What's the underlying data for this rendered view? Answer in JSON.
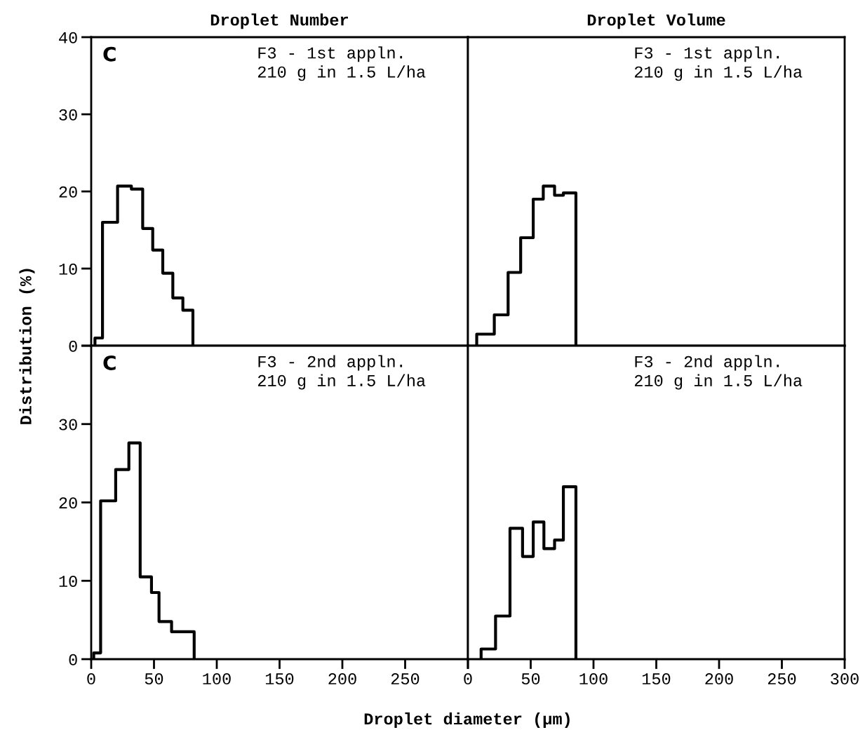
{
  "chart_data": [
    {
      "type": "histogram",
      "title": "Droplet Number",
      "annotations": [
        "C",
        "F3 - 1st appln.\n210 g in 1.5 L/ha"
      ],
      "bins": [
        3,
        9,
        21,
        32,
        41,
        49,
        57,
        65,
        73,
        81
      ],
      "values": [
        1,
        16,
        20.7,
        20.3,
        15.2,
        12.4,
        9.4,
        6.2,
        4.6
      ],
      "color": "#000000",
      "xlim": [
        0,
        300
      ],
      "ylim": [
        0,
        40
      ],
      "xticks": [
        0,
        50,
        100,
        150,
        200,
        250
      ],
      "yticks": [
        0,
        10,
        20,
        30,
        40
      ],
      "tick_labels": "y",
      "grid": false
    },
    {
      "type": "histogram",
      "title": "Droplet Volume",
      "annotations": [
        "F3 - 1st appln.\n210 g in 1.5 L/ha"
      ],
      "bins": [
        7,
        21,
        32,
        42,
        52,
        60,
        69,
        76,
        86
      ],
      "values": [
        1.5,
        4,
        9.5,
        14,
        19,
        20.7,
        19.5,
        19.8
      ],
      "color": "#000000",
      "xlim": [
        0,
        300
      ],
      "ylim": [
        0,
        40
      ],
      "xticks": [
        0,
        50,
        100,
        150,
        200,
        250,
        300
      ],
      "yticks": [
        0,
        10,
        20,
        30,
        40
      ],
      "tick_labels": false,
      "grid": false
    },
    {
      "type": "histogram",
      "ylabel": "Distribution (%)",
      "xlabel": "Droplet diameter (µm)",
      "annotations": [
        "C",
        "F3 - 2nd appln.\n210 g in 1.5 L/ha"
      ],
      "bins": [
        2,
        7.5,
        19.5,
        30,
        39,
        48,
        54,
        64,
        82
      ],
      "values": [
        0.8,
        20.2,
        24.2,
        27.6,
        10.5,
        8.5,
        4.8,
        3.5
      ],
      "color": "#000000",
      "xlim": [
        0,
        300
      ],
      "ylim": [
        0,
        40
      ],
      "xticks": [
        0,
        50,
        100,
        150,
        200,
        250,
        {
          "value": 300,
          "label": null
        }
      ],
      "yticks": [
        0,
        10,
        20,
        30,
        {
          "value": 40,
          "label": null
        }
      ],
      "grid": false
    },
    {
      "type": "histogram",
      "annotations": [
        "F3 - 2nd appln.\n210 g in 1.5 L/ha"
      ],
      "bins": [
        10.5,
        22,
        33.5,
        43.5,
        52,
        60.5,
        69,
        76,
        86
      ],
      "values": [
        1.3,
        5.5,
        16.7,
        13.1,
        17.5,
        14.1,
        15.2,
        22.0
      ],
      "color": "#000000",
      "xlim": [
        0,
        300
      ],
      "ylim": [
        0,
        40
      ],
      "xticks": [
        0,
        50,
        100,
        150,
        200,
        250,
        300
      ],
      "yticks": [
        0,
        10,
        20,
        30,
        40
      ],
      "tick_labels": "x",
      "grid": false
    }
  ]
}
